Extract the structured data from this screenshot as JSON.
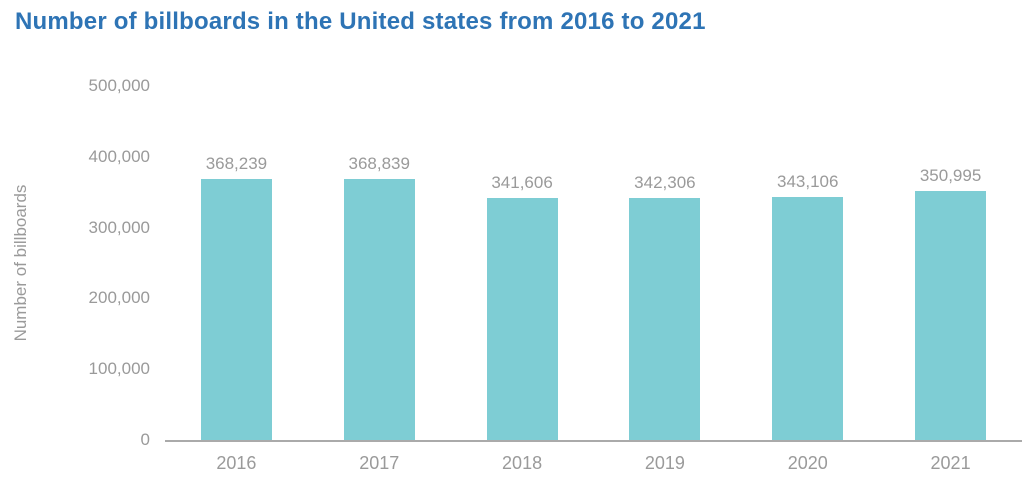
{
  "title": "Number of billboards in the United states from 2016 to 2021",
  "colors": {
    "title": "#2e74b5",
    "bar": "#7ecdd4",
    "axis_text": "#9a9a9a",
    "axis_line": "#aaaaaa",
    "background": "#ffffff"
  },
  "chart_data": {
    "type": "bar",
    "title": "Number of billboards in the United states from 2016 to 2021",
    "categories": [
      "2016",
      "2017",
      "2018",
      "2019",
      "2020",
      "2021"
    ],
    "values": [
      368239,
      368839,
      341606,
      342306,
      343106,
      350995
    ],
    "value_labels": [
      "368,239",
      "368,839",
      "341,606",
      "342,306",
      "343,106",
      "350,995"
    ],
    "xlabel": "",
    "ylabel": "Number of billboards",
    "ylim": [
      0,
      500000
    ],
    "ytick_values": [
      500000,
      400000,
      300000,
      200000,
      100000,
      0
    ],
    "ytick_labels": [
      "500,000",
      "400,000",
      "300,000",
      "200,000",
      "100,000",
      "0"
    ],
    "grid": false,
    "legend": "none",
    "bar_labels_position": "above"
  }
}
